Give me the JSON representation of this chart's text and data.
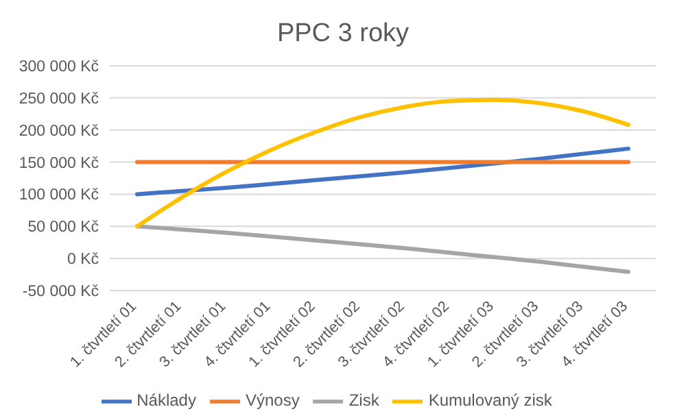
{
  "chart_data": {
    "type": "line",
    "title": "PPC 3 roky",
    "categories": [
      "1. čtvrtletí 01",
      "2. čtvrtletí 01",
      "3. čtvrtletí 01",
      "4. čtvrtletí 01",
      "1. čtvrtletí 02",
      "2. čtvrtletí 02",
      "3. čtvrtletí 02",
      "4. čtvrtletí 02",
      "1. čtvrtletí 03",
      "2. čtvrtletí 03",
      "3. čtvrtletí 03",
      "4. čtvrtletí 03"
    ],
    "series": [
      {
        "name": "Náklady",
        "color": "#4472c4",
        "values": [
          100000,
          105000,
          110000,
          116000,
          122000,
          128000,
          134000,
          141000,
          148000,
          155000,
          163000,
          171000
        ]
      },
      {
        "name": "Výnosy",
        "color": "#ed7d31",
        "values": [
          150000,
          150000,
          150000,
          150000,
          150000,
          150000,
          150000,
          150000,
          150000,
          150000,
          150000,
          150000
        ]
      },
      {
        "name": "Zisk",
        "color": "#a5a5a5",
        "values": [
          50000,
          45000,
          40000,
          34000,
          28000,
          22000,
          16000,
          9000,
          2000,
          -5000,
          -13000,
          -21000
        ]
      },
      {
        "name": "Kumulovaný zisk",
        "color": "#ffc000",
        "values": [
          50000,
          95000,
          135000,
          169000,
          197000,
          220000,
          236000,
          245000,
          247000,
          242000,
          229000,
          208000
        ]
      }
    ],
    "ylim": [
      -50000,
      300000
    ],
    "yticks": [
      {
        "value": -50000,
        "label": "-50 000 Kč"
      },
      {
        "value": 0,
        "label": "0 Kč"
      },
      {
        "value": 50000,
        "label": "50 000 Kč"
      },
      {
        "value": 100000,
        "label": "100 000 Kč"
      },
      {
        "value": 150000,
        "label": "150 000 Kč"
      },
      {
        "value": 200000,
        "label": "200 000 Kč"
      },
      {
        "value": 250000,
        "label": "250 000 Kč"
      },
      {
        "value": 300000,
        "label": "300 000 Kč"
      }
    ],
    "grid": "y",
    "legend": "bottom",
    "marker": "none",
    "line_style": "solid"
  }
}
